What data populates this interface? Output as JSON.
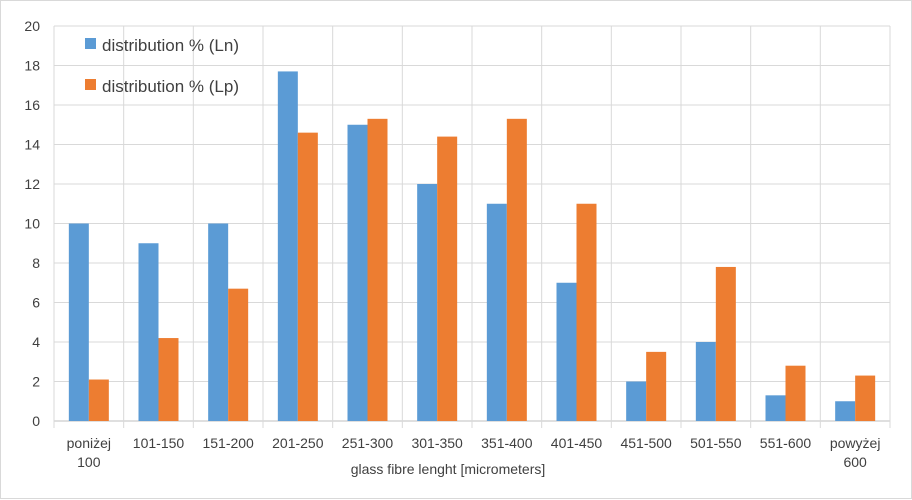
{
  "chart_data": {
    "type": "bar",
    "title": "",
    "xlabel": "glass fibre lenght [micrometers]",
    "ylabel": "",
    "ylim": [
      0,
      20
    ],
    "yticks": [
      0,
      2,
      4,
      6,
      8,
      10,
      12,
      14,
      16,
      18,
      20
    ],
    "grid": true,
    "legend_position": "top-left",
    "categories": [
      [
        "poniżej",
        "100"
      ],
      [
        "101-150"
      ],
      [
        "151-200"
      ],
      [
        "201-250"
      ],
      [
        "251-300"
      ],
      [
        "301-350"
      ],
      [
        "351-400"
      ],
      [
        "401-450"
      ],
      [
        "451-500"
      ],
      [
        "501-550"
      ],
      [
        "551-600"
      ],
      [
        "powyżej",
        "600"
      ]
    ],
    "series": [
      {
        "name": "distribution % (Ln)",
        "color": "#5b9bd5",
        "values": [
          10,
          9,
          10,
          17.7,
          15,
          12,
          11,
          7,
          2,
          4,
          1.3,
          1
        ]
      },
      {
        "name": "distribution % (Lp)",
        "color": "#ed7d31",
        "values": [
          2.1,
          4.2,
          6.7,
          14.6,
          15.3,
          14.4,
          15.3,
          11,
          3.5,
          7.8,
          2.8,
          2.3
        ]
      }
    ]
  }
}
